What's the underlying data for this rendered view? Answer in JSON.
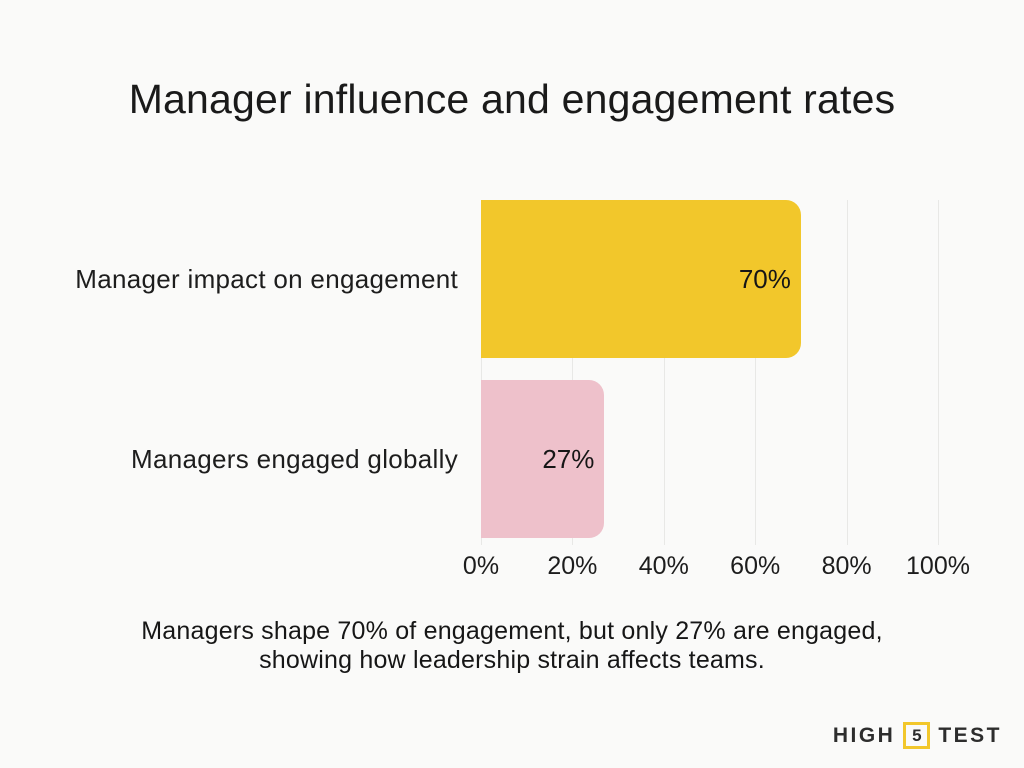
{
  "page": {
    "background": "#FAFAF9"
  },
  "chart_data": {
    "type": "bar",
    "orientation": "horizontal",
    "title": "Manager influence and engagement rates",
    "categories": [
      "Manager impact on engagement",
      "Managers engaged globally"
    ],
    "values": [
      70,
      27
    ],
    "value_labels": [
      "70%",
      "27%"
    ],
    "bar_colors": [
      "#F2C72B",
      "#EEC1CB"
    ],
    "x_ticks": [
      "0%",
      "20%",
      "40%",
      "60%",
      "80%",
      "100%"
    ],
    "xlim": [
      0,
      100
    ],
    "grid": true,
    "legend": false
  },
  "caption": {
    "lines": [
      "Managers shape 70% of engagement, but only 27% are engaged,",
      "showing how leadership strain affects teams."
    ]
  },
  "logo": {
    "word1": "HIGH",
    "number": "5",
    "word2": "TEST",
    "accent": "#F2C72B"
  },
  "colors": {
    "gridline": "#E8E8E6",
    "text": "#1D1D1D",
    "title_text": "#1A1A1A"
  }
}
